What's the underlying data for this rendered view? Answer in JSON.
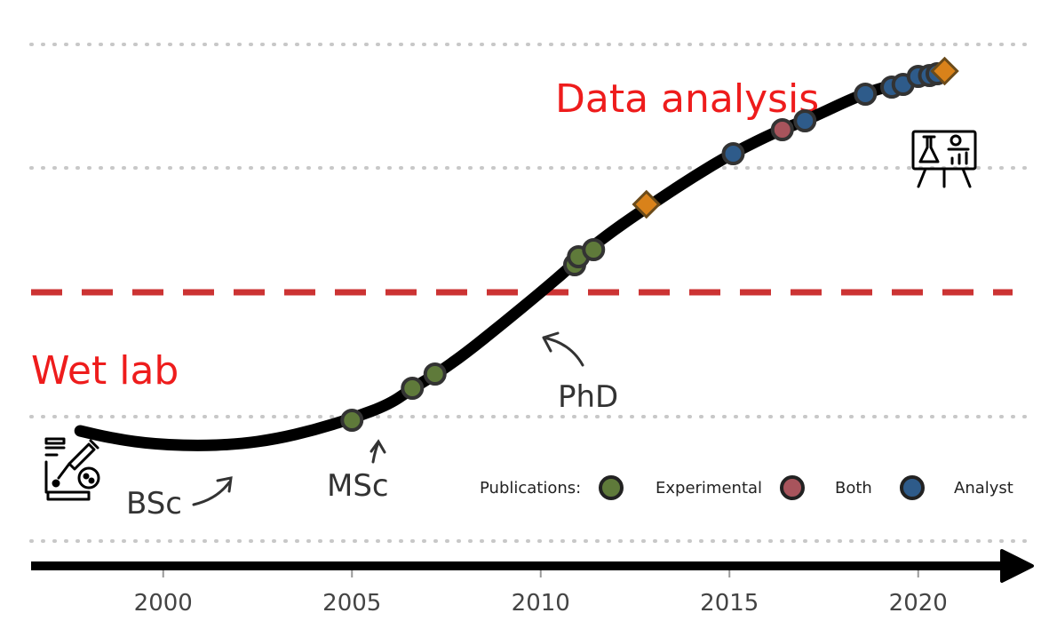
{
  "chart_data": {
    "type": "line",
    "title": "",
    "xlabel": "",
    "ylabel": "",
    "xlim": [
      1996.5,
      2022.5
    ],
    "x_ticks": [
      "2000",
      "2005",
      "2010",
      "2015",
      "2020"
    ],
    "x_tick_values": [
      2000,
      2005,
      2010,
      2015,
      2020
    ],
    "region_labels": {
      "upper": "Data analysis",
      "lower": "Wet lab"
    },
    "threshold_line": {
      "style": "dashed",
      "color": "#cc3333"
    },
    "career_curve": [
      [
        1997.8,
        485
      ],
      [
        1998.5,
        492
      ],
      [
        1999.5,
        499
      ],
      [
        2000.8,
        502
      ],
      [
        2002,
        500
      ],
      [
        2003,
        494
      ],
      [
        2004,
        484
      ],
      [
        2005,
        471
      ],
      [
        2006,
        455
      ],
      [
        2006.6,
        437
      ],
      [
        2007.2,
        422
      ],
      [
        2008,
        398
      ],
      [
        2009,
        364
      ],
      [
        2010,
        329
      ],
      [
        2010.8,
        300
      ],
      [
        2011.2,
        283
      ],
      [
        2012,
        257
      ],
      [
        2012.9,
        231
      ],
      [
        2014,
        200
      ],
      [
        2015.1,
        172
      ],
      [
        2016.3,
        147
      ],
      [
        2017,
        136
      ],
      [
        2018.5,
        106
      ],
      [
        2019.3,
        96
      ],
      [
        2020,
        87
      ],
      [
        2020.7,
        80
      ]
    ],
    "milestones": [
      {
        "label": "BSc"
      },
      {
        "label": "MSc"
      },
      {
        "label": "PhD"
      }
    ],
    "legend": {
      "title": "Publications:",
      "position": "bottom-right",
      "entries": [
        {
          "name": "Experimental",
          "color": "#5f7a3a"
        },
        {
          "name": "Both",
          "color": "#a8545c"
        },
        {
          "name": "Analyst",
          "color": "#2e5b8a"
        }
      ]
    },
    "publications": [
      {
        "x": 2005.0,
        "y": 473,
        "type": "Experimental"
      },
      {
        "x": 2006.6,
        "y": 437,
        "type": "Experimental"
      },
      {
        "x": 2007.2,
        "y": 421,
        "type": "Experimental"
      },
      {
        "x": 2010.9,
        "y": 298,
        "type": "Experimental"
      },
      {
        "x": 2011.0,
        "y": 289,
        "type": "Experimental"
      },
      {
        "x": 2011.4,
        "y": 281,
        "type": "Experimental"
      },
      {
        "x": 2015.1,
        "y": 173,
        "type": "Analyst"
      },
      {
        "x": 2016.4,
        "y": 146,
        "type": "Both"
      },
      {
        "x": 2017.0,
        "y": 136,
        "type": "Analyst"
      },
      {
        "x": 2018.6,
        "y": 106,
        "type": "Analyst"
      },
      {
        "x": 2019.3,
        "y": 98,
        "type": "Analyst"
      },
      {
        "x": 2019.6,
        "y": 95,
        "type": "Analyst"
      },
      {
        "x": 2020.0,
        "y": 86,
        "type": "Analyst"
      },
      {
        "x": 2020.3,
        "y": 85,
        "type": "Analyst"
      },
      {
        "x": 2020.5,
        "y": 83,
        "type": "Analyst"
      }
    ],
    "highlights": [
      {
        "x": 2012.8,
        "y": 230,
        "color": "#d9821a"
      },
      {
        "x": 2020.7,
        "y": 80,
        "color": "#d9821a"
      }
    ],
    "icons": [
      "lab-dropper-icon",
      "data-presentation-icon"
    ]
  }
}
